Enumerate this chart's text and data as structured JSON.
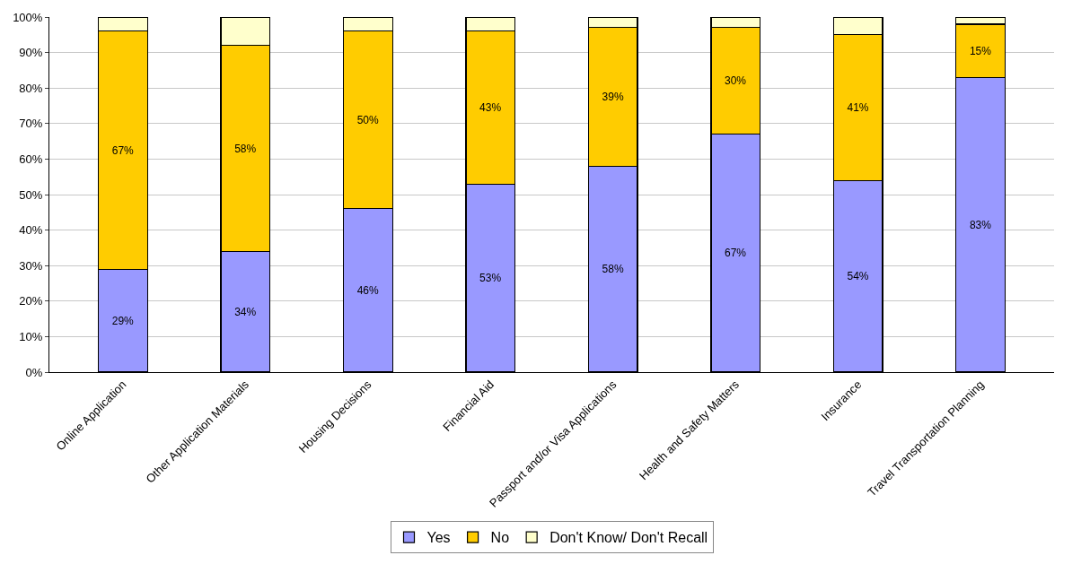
{
  "chart_data": {
    "type": "bar",
    "stacked": true,
    "categories": [
      "Online Application",
      "Other Application Materials",
      "Housing Decisions",
      "Financial Aid",
      "Passport and/or Visa Applications",
      "Health and Safety Matters",
      "Insurance",
      "Travel Transportation Planning"
    ],
    "series": [
      {
        "name": "Yes",
        "color": "#9999ff",
        "values": [
          29,
          34,
          46,
          53,
          58,
          67,
          54,
          83
        ],
        "value_labels": [
          "29%",
          "34%",
          "46%",
          "53%",
          "58%",
          "67%",
          "54%",
          "83%"
        ]
      },
      {
        "name": "No",
        "color": "#ffcc00",
        "values": [
          67,
          58,
          50,
          43,
          39,
          30,
          41,
          15
        ],
        "value_labels": [
          "67%",
          "58%",
          "50%",
          "43%",
          "39%",
          "30%",
          "41%",
          "15%"
        ]
      },
      {
        "name": "Don't Know/ Don't Recall",
        "color": "#ffffcc",
        "values": [
          4,
          8,
          4,
          4,
          3,
          3,
          5,
          2
        ]
      }
    ],
    "ylim": [
      0,
      100
    ],
    "yticks": [
      {
        "value": 0,
        "label": "0%"
      },
      {
        "value": 10,
        "label": "10%"
      },
      {
        "value": 20,
        "label": "20%"
      },
      {
        "value": 30,
        "label": "30%"
      },
      {
        "value": 40,
        "label": "40%"
      },
      {
        "value": 50,
        "label": "50%"
      },
      {
        "value": 60,
        "label": "60%"
      },
      {
        "value": 70,
        "label": "70%"
      },
      {
        "value": 80,
        "label": "80%"
      },
      {
        "value": 90,
        "label": "90%"
      },
      {
        "value": 100,
        "label": "100%"
      }
    ],
    "grid": "y",
    "legend": "bottom"
  }
}
